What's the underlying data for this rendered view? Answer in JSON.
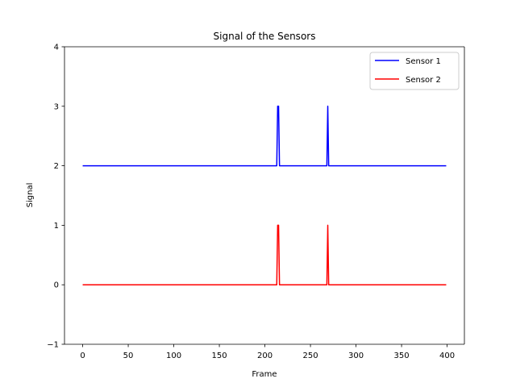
{
  "chart_data": {
    "type": "line",
    "title": "Signal of the Sensors",
    "xlabel": "Frame",
    "ylabel": "Signal",
    "xlim": [
      -19.95,
      418.95
    ],
    "ylim": [
      -1,
      4
    ],
    "xticks": [
      0,
      50,
      100,
      150,
      200,
      250,
      300,
      350,
      400
    ],
    "yticks": [
      -1,
      0,
      1,
      2,
      3,
      4
    ],
    "grid": false,
    "legend_position": "top-right",
    "series": [
      {
        "name": "Sensor 1",
        "color": "#0000ff",
        "x": [
          0,
          213,
          214,
          215,
          216,
          268,
          269,
          270,
          399
        ],
        "y": [
          2,
          2,
          3,
          3,
          2,
          2,
          3,
          2,
          2
        ]
      },
      {
        "name": "Sensor 2",
        "color": "#ff0000",
        "x": [
          0,
          213,
          214,
          215,
          216,
          268,
          269,
          270,
          399
        ],
        "y": [
          0,
          0,
          1,
          1,
          0,
          0,
          1,
          0,
          0
        ]
      }
    ]
  }
}
